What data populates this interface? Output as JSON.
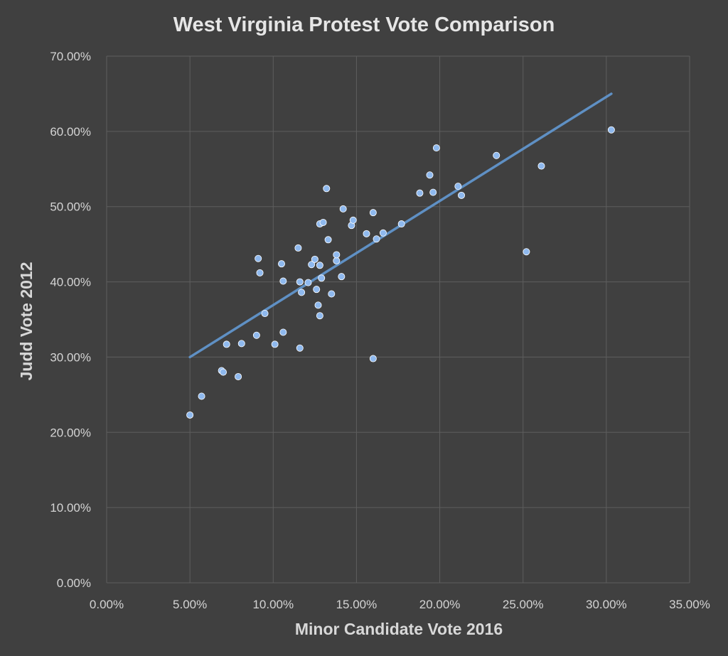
{
  "chart_data": {
    "type": "scatter",
    "title": "West Virginia Protest Vote Comparison",
    "xlabel": "Minor Candidate Vote 2016",
    "ylabel": "Judd Vote 2012",
    "xlim": [
      0,
      35
    ],
    "ylim": [
      0,
      70
    ],
    "x_ticks": [
      "0.00%",
      "5.00%",
      "10.00%",
      "15.00%",
      "20.00%",
      "25.00%",
      "30.00%",
      "35.00%"
    ],
    "y_ticks": [
      "0.00%",
      "10.00%",
      "20.00%",
      "30.00%",
      "40.00%",
      "50.00%",
      "60.00%",
      "70.00%"
    ],
    "grid": true,
    "legend": "none",
    "colors": {
      "background": "#404040",
      "points": "#8fb9ee",
      "trendline": "#5f90c4",
      "grid": "#5e5e5e"
    },
    "trendline": {
      "type": "linear",
      "from": [
        5.0,
        30.0
      ],
      "to": [
        30.3,
        65.0
      ]
    },
    "points": [
      [
        5.0,
        22.3
      ],
      [
        5.7,
        24.8
      ],
      [
        6.9,
        28.2
      ],
      [
        7.0,
        28.0
      ],
      [
        7.2,
        31.7
      ],
      [
        7.9,
        27.4
      ],
      [
        8.1,
        31.8
      ],
      [
        9.0,
        32.9
      ],
      [
        9.1,
        43.1
      ],
      [
        9.2,
        41.2
      ],
      [
        9.5,
        35.8
      ],
      [
        10.1,
        31.7
      ],
      [
        10.5,
        42.4
      ],
      [
        10.6,
        33.3
      ],
      [
        10.6,
        40.1
      ],
      [
        11.5,
        44.5
      ],
      [
        11.6,
        31.2
      ],
      [
        11.6,
        40.0
      ],
      [
        11.7,
        38.6
      ],
      [
        12.1,
        39.9
      ],
      [
        12.3,
        42.3
      ],
      [
        12.5,
        43.0
      ],
      [
        12.6,
        39.0
      ],
      [
        12.7,
        36.9
      ],
      [
        12.8,
        42.2
      ],
      [
        12.8,
        47.7
      ],
      [
        12.8,
        35.5
      ],
      [
        12.9,
        40.5
      ],
      [
        13.0,
        47.9
      ],
      [
        13.2,
        52.4
      ],
      [
        13.3,
        45.6
      ],
      [
        13.5,
        38.4
      ],
      [
        13.8,
        42.8
      ],
      [
        13.8,
        43.6
      ],
      [
        14.1,
        40.7
      ],
      [
        14.2,
        49.7
      ],
      [
        14.7,
        47.5
      ],
      [
        14.8,
        48.2
      ],
      [
        15.6,
        46.4
      ],
      [
        16.0,
        29.8
      ],
      [
        16.0,
        49.2
      ],
      [
        16.2,
        45.7
      ],
      [
        16.6,
        46.5
      ],
      [
        17.7,
        47.7
      ],
      [
        18.8,
        51.8
      ],
      [
        19.4,
        54.2
      ],
      [
        19.6,
        51.9
      ],
      [
        19.8,
        57.8
      ],
      [
        21.1,
        52.7
      ],
      [
        21.3,
        51.5
      ],
      [
        23.4,
        56.8
      ],
      [
        25.2,
        44.0
      ],
      [
        26.1,
        55.4
      ],
      [
        30.3,
        60.2
      ]
    ]
  }
}
